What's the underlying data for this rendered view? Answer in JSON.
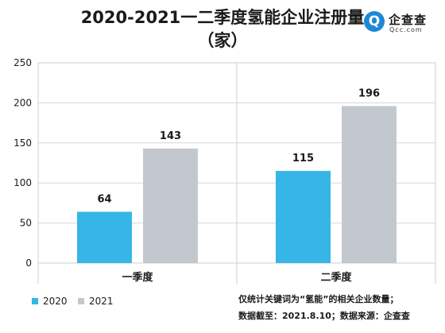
{
  "title_line1": "2020-2021一二季度氢能企业注册量",
  "title_line2": "（家）",
  "logo": {
    "mark": "Q",
    "name": "企查查",
    "domain": "Qcc.com"
  },
  "notes": [
    "仅统计关键词为“氢能”的相关企业数量；",
    "数据截至：2021.8.10；数据来源：企查查"
  ],
  "chart_data": {
    "type": "bar",
    "categories": [
      "一季度",
      "二季度"
    ],
    "series": [
      {
        "name": "2020",
        "color": "#35b6e6",
        "values": [
          64,
          115
        ]
      },
      {
        "name": "2021",
        "color": "#c3c8cf",
        "values": [
          143,
          196
        ]
      }
    ],
    "ylim": [
      0,
      250
    ],
    "yticks": [
      0,
      50,
      100,
      150,
      200,
      250
    ],
    "grid": true,
    "legend_position": "bottom-left"
  }
}
